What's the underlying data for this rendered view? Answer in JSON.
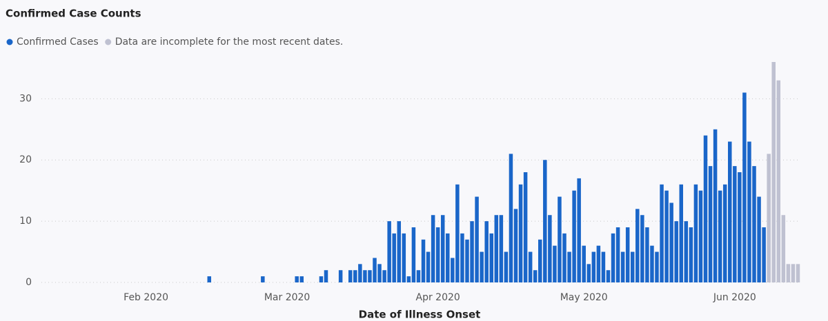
{
  "chart_data": {
    "type": "bar",
    "title": "Confirmed Case Counts",
    "x_label": "Date of Illness Onset",
    "categories": [
      null,
      null,
      null,
      null,
      null,
      null,
      null,
      null,
      null,
      null,
      null,
      null,
      null,
      null,
      null,
      null,
      null,
      null,
      null,
      null,
      null,
      "Feb 2020",
      null,
      null,
      null,
      null,
      null,
      null,
      null,
      null,
      null,
      null,
      null,
      null,
      null,
      null,
      null,
      null,
      null,
      null,
      null,
      null,
      null,
      null,
      null,
      null,
      null,
      null,
      null,
      null,
      "Mar 2020",
      null,
      null,
      null,
      null,
      null,
      null,
      null,
      null,
      null,
      null,
      null,
      null,
      null,
      null,
      null,
      null,
      null,
      null,
      null,
      null,
      null,
      null,
      null,
      null,
      null,
      null,
      null,
      null,
      null,
      null,
      "Apr 2020",
      null,
      null,
      null,
      null,
      null,
      null,
      null,
      null,
      null,
      null,
      null,
      null,
      null,
      null,
      null,
      null,
      null,
      null,
      null,
      null,
      null,
      null,
      null,
      null,
      null,
      null,
      null,
      null,
      null,
      "May 2020",
      null,
      null,
      null,
      null,
      null,
      null,
      null,
      null,
      null,
      null,
      null,
      null,
      null,
      null,
      null,
      null,
      null,
      null,
      null,
      null,
      null,
      null,
      null,
      null,
      null,
      null,
      null,
      null,
      null,
      null,
      "Jun 2020",
      null,
      null,
      null,
      null,
      null,
      null,
      null,
      null,
      null,
      null,
      null,
      null,
      null
    ],
    "series": [
      {
        "name": "Confirmed Cases",
        "color": "#1a66c9",
        "values": [
          null,
          null,
          null,
          null,
          null,
          null,
          null,
          null,
          null,
          null,
          null,
          null,
          null,
          null,
          null,
          null,
          null,
          null,
          null,
          null,
          null,
          null,
          null,
          null,
          null,
          null,
          null,
          null,
          null,
          null,
          null,
          null,
          null,
          null,
          1,
          null,
          null,
          null,
          null,
          null,
          null,
          null,
          null,
          null,
          null,
          1,
          null,
          null,
          null,
          null,
          null,
          null,
          1,
          1,
          null,
          null,
          null,
          1,
          2,
          null,
          null,
          2,
          null,
          2,
          2,
          3,
          2,
          2,
          4,
          3,
          2,
          10,
          8,
          10,
          8,
          1,
          9,
          2,
          7,
          5,
          11,
          9,
          11,
          8,
          4,
          16,
          8,
          7,
          10,
          14,
          5,
          10,
          8,
          11,
          11,
          5,
          21,
          12,
          16,
          18,
          5,
          2,
          7,
          20,
          11,
          6,
          14,
          8,
          5,
          15,
          17,
          6,
          3,
          5,
          6,
          5,
          2,
          8,
          9,
          5,
          9,
          5,
          12,
          11,
          9,
          6,
          5,
          16,
          15,
          13,
          10,
          16,
          10,
          9,
          16,
          15,
          24,
          19,
          25,
          15,
          16,
          23,
          19,
          18,
          31,
          23,
          19,
          14,
          9,
          null,
          null,
          null,
          null,
          null,
          null,
          null
        ]
      },
      {
        "name": "Data are incomplete for the most recent dates.",
        "color": "#bfc1d1",
        "values": [
          null,
          null,
          null,
          null,
          null,
          null,
          null,
          null,
          null,
          null,
          null,
          null,
          null,
          null,
          null,
          null,
          null,
          null,
          null,
          null,
          null,
          null,
          null,
          null,
          null,
          null,
          null,
          null,
          null,
          null,
          null,
          null,
          null,
          null,
          null,
          null,
          null,
          null,
          null,
          null,
          null,
          null,
          null,
          null,
          null,
          null,
          null,
          null,
          null,
          null,
          null,
          null,
          null,
          null,
          null,
          null,
          null,
          null,
          null,
          null,
          null,
          null,
          null,
          null,
          null,
          null,
          null,
          null,
          null,
          null,
          null,
          null,
          null,
          null,
          null,
          null,
          null,
          null,
          null,
          null,
          null,
          null,
          null,
          null,
          null,
          null,
          null,
          null,
          null,
          null,
          null,
          null,
          null,
          null,
          null,
          null,
          null,
          null,
          null,
          null,
          null,
          null,
          null,
          null,
          null,
          null,
          null,
          null,
          null,
          null,
          null,
          null,
          null,
          null,
          null,
          null,
          null,
          null,
          null,
          null,
          null,
          null,
          null,
          null,
          null,
          null,
          null,
          null,
          null,
          null,
          null,
          null,
          null,
          null,
          null,
          null,
          null,
          null,
          null,
          null,
          null,
          null,
          null,
          null,
          null,
          null,
          null,
          null,
          null,
          21,
          36,
          33,
          11,
          3,
          3,
          3
        ]
      }
    ],
    "ylim": [
      0,
      36
    ],
    "yticks": [
      0,
      10,
      20,
      30
    ],
    "grid": true
  }
}
